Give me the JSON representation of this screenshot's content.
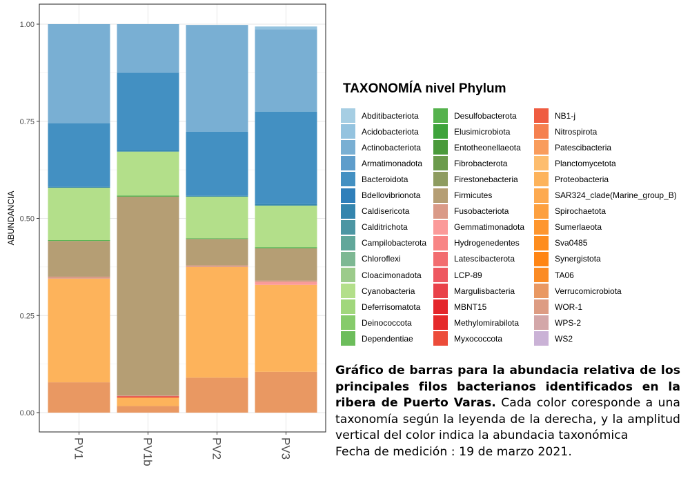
{
  "chart_data": {
    "type": "bar",
    "stacked": true,
    "categories": [
      "PV1",
      "PV1b",
      "PV2",
      "PV3"
    ],
    "ylabel": "ABUNDANCIA",
    "xlabel": "",
    "ylim": [
      0,
      1
    ],
    "yticks": [
      "0.00",
      "0.25",
      "0.50",
      "0.75",
      "1.00"
    ],
    "grid": true,
    "legend_position": "right",
    "series": [
      {
        "name": "Abditibacteriota",
        "color": "#a6cee3",
        "values": [
          0,
          0,
          0,
          0
        ]
      },
      {
        "name": "Acidobacteriota",
        "color": "#94c3df",
        "values": [
          0,
          0,
          0,
          0.007
        ]
      },
      {
        "name": "Actinobacteriota",
        "color": "#79afd3",
        "values": [
          0.255,
          0.125,
          0.275,
          0.212
        ]
      },
      {
        "name": "Armatimonadota",
        "color": "#5e9dcb",
        "values": [
          0,
          0,
          0,
          0
        ]
      },
      {
        "name": "Bacteroidota",
        "color": "#4390c2",
        "values": [
          0.164,
          0.2,
          0.165,
          0.238
        ]
      },
      {
        "name": "Bdellovibrionota",
        "color": "#2f7fba",
        "values": [
          0,
          0,
          0,
          0
        ]
      },
      {
        "name": "Caldisericota",
        "color": "#3485ae",
        "values": [
          0.002,
          0.003,
          0.002,
          0.004
        ]
      },
      {
        "name": "Calditrichota",
        "color": "#4c96a3",
        "values": [
          0,
          0,
          0,
          0
        ]
      },
      {
        "name": "Campilobacterota",
        "color": "#61a79a",
        "values": [
          0,
          0,
          0,
          0
        ]
      },
      {
        "name": "Chloroflexi",
        "color": "#7db893",
        "values": [
          0,
          0,
          0,
          0
        ]
      },
      {
        "name": "Cloacimonadota",
        "color": "#9ccb8b",
        "values": [
          0,
          0,
          0,
          0
        ]
      },
      {
        "name": "Cyanobacteria",
        "color": "#b3df8a",
        "values": [
          0.135,
          0.113,
          0.107,
          0.107
        ]
      },
      {
        "name": "Deferrisomatota",
        "color": "#a1d77c",
        "values": [
          0,
          0,
          0,
          0
        ]
      },
      {
        "name": "Deinococcota",
        "color": "#86cb6b",
        "values": [
          0,
          0,
          0,
          0
        ]
      },
      {
        "name": "Dependentiae",
        "color": "#6cbd5b",
        "values": [
          0,
          0,
          0,
          0
        ]
      },
      {
        "name": "Desulfobacterota",
        "color": "#55b24d",
        "values": [
          0.002,
          0.003,
          0.002,
          0.003
        ]
      },
      {
        "name": "Elusimicrobiota",
        "color": "#3ea33b",
        "values": [
          0,
          0,
          0,
          0
        ]
      },
      {
        "name": "Entotheonellaeota",
        "color": "#4a9a3b",
        "values": [
          0,
          0,
          0,
          0
        ]
      },
      {
        "name": "Fibrobacterota",
        "color": "#6b9b4c",
        "values": [
          0,
          0,
          0,
          0
        ]
      },
      {
        "name": "Firestonebacteria",
        "color": "#8e9c60",
        "values": [
          0,
          0,
          0,
          0
        ]
      },
      {
        "name": "Firmicutes",
        "color": "#b59e74",
        "values": [
          0.092,
          0.512,
          0.068,
          0.083
        ]
      },
      {
        "name": "Fusobacteriota",
        "color": "#da9a87",
        "values": [
          0.005,
          0.002,
          0.004,
          0.004
        ]
      },
      {
        "name": "Gemmatimonadota",
        "color": "#fb9a99",
        "values": [
          0,
          0,
          0,
          0.007
        ]
      },
      {
        "name": "Hydrogenedentes",
        "color": "#f88585",
        "values": [
          0,
          0,
          0,
          0
        ]
      },
      {
        "name": "Latescibacterota",
        "color": "#f26c6f",
        "values": [
          0,
          0,
          0,
          0
        ]
      },
      {
        "name": "LCP-89",
        "color": "#ee5760",
        "values": [
          0,
          0,
          0,
          0
        ]
      },
      {
        "name": "Margulisbacteria",
        "color": "#e94149",
        "values": [
          0,
          0,
          0,
          0
        ]
      },
      {
        "name": "MBNT15",
        "color": "#e4262b",
        "values": [
          0,
          0,
          0,
          0
        ]
      },
      {
        "name": "Methylomirabilota",
        "color": "#e52a2b",
        "values": [
          0,
          0.003,
          0,
          0
        ]
      },
      {
        "name": "Myxococcota",
        "color": "#ec4c3a",
        "values": [
          0,
          0,
          0,
          0
        ]
      },
      {
        "name": "NB1-j",
        "color": "#ef5c41",
        "values": [
          0,
          0,
          0,
          0
        ]
      },
      {
        "name": "Nitrospirota",
        "color": "#f5804f",
        "values": [
          0,
          0,
          0,
          0
        ]
      },
      {
        "name": "Patescibacteria",
        "color": "#f99c5c",
        "values": [
          0,
          0,
          0,
          0
        ]
      },
      {
        "name": "Planctomycetota",
        "color": "#fdbd6e",
        "values": [
          0,
          0,
          0,
          0
        ]
      },
      {
        "name": "Proteobacteria",
        "color": "#fdb35b",
        "values": [
          0.267,
          0.022,
          0.285,
          0.224
        ]
      },
      {
        "name": "SAR324_clade(Marine_group_B)",
        "color": "#fdaa50",
        "values": [
          0,
          0,
          0,
          0
        ]
      },
      {
        "name": "Spirochaetota",
        "color": "#fda03f",
        "values": [
          0,
          0,
          0,
          0
        ]
      },
      {
        "name": "Sumerlaeota",
        "color": "#fe962e",
        "values": [
          0,
          0,
          0,
          0
        ]
      },
      {
        "name": "Sva0485",
        "color": "#fe8d1e",
        "values": [
          0,
          0,
          0,
          0
        ]
      },
      {
        "name": "Synergistota",
        "color": "#ff8514",
        "values": [
          0,
          0,
          0,
          0
        ]
      },
      {
        "name": "TA06",
        "color": "#fb8b24",
        "values": [
          0,
          0,
          0,
          0
        ]
      },
      {
        "name": "Verrucomicrobiota",
        "color": "#e99862",
        "values": [
          0.078,
          0.017,
          0.09,
          0.105
        ]
      },
      {
        "name": "WOR-1",
        "color": "#dd9c83",
        "values": [
          0,
          0,
          0,
          0
        ]
      },
      {
        "name": "WPS-2",
        "color": "#d3a7a9",
        "values": [
          0,
          0,
          0,
          0
        ]
      },
      {
        "name": "WS2",
        "color": "#cab2d6",
        "values": [
          0,
          0,
          0,
          0
        ]
      }
    ],
    "legend_title": "TAXONOMÍA nivel Phylum"
  },
  "caption": {
    "bold_text": "Gráfico de barras para la abundacia relativa de los principales filos bacterianos identificados en  la ribera de Puerto Varas.",
    "body_text": " Cada color coresponde a una taxonomía según la leyenda de la derecha, y la amplitud vertical del color indica la abundacia taxonómica",
    "date_text": "Fecha de medición : 19 de marzo 2021."
  }
}
